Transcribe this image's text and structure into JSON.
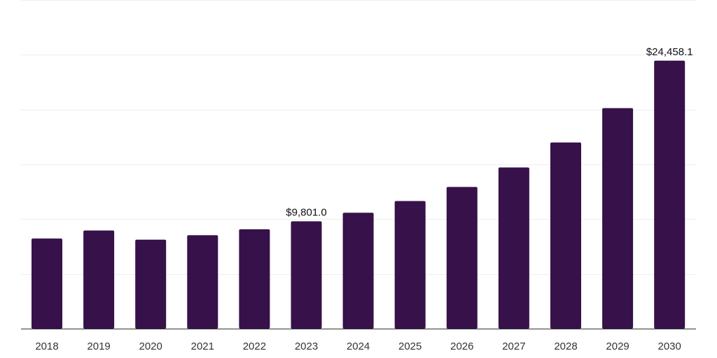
{
  "chart_data": {
    "type": "bar",
    "categories": [
      "2018",
      "2019",
      "2020",
      "2021",
      "2022",
      "2023",
      "2024",
      "2025",
      "2026",
      "2027",
      "2028",
      "2029",
      "2030"
    ],
    "values": [
      8230,
      8960,
      8120,
      8530,
      9070,
      9801.0,
      10580,
      11650,
      12930,
      14710,
      17000,
      20130,
      24458.1
    ],
    "data_labels": [
      {
        "category": "2023",
        "text": "$9,801.0"
      },
      {
        "category": "2030",
        "text": "$24,458.1"
      }
    ],
    "ylim": [
      0,
      30000
    ],
    "grid": true,
    "bar_color": "#371149",
    "title": "",
    "xlabel": "",
    "ylabel": ""
  }
}
